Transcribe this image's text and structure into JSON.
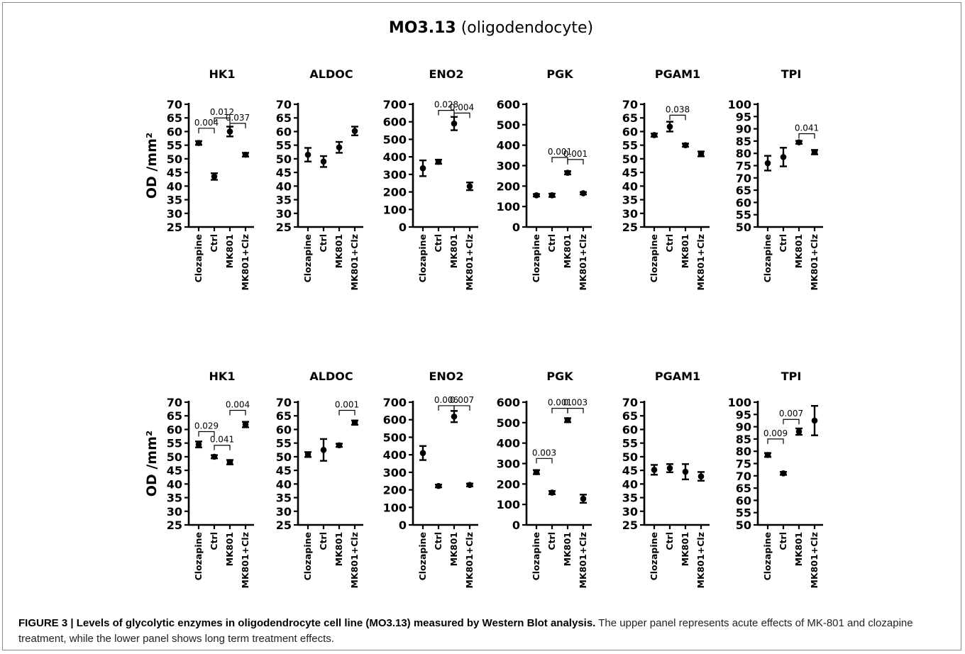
{
  "title_bold": "MO3.13",
  "title_rest": "(oligodendocyte)",
  "caption": {
    "label": "FIGURE 3 | Levels of glycolytic enzymes in oligodendrocyte cell line (MO3.13) measured by Western Blot analysis.",
    "text": "The upper panel represents acute effects of MK-801 and clozapine treatment, while the lower panel shows long term treatment effects."
  },
  "ylabel": "OD /mm²",
  "chart_data": [
    {
      "type": "scatter",
      "row": 0,
      "title": "HK1",
      "categories": [
        "Clozapine",
        "Ctrl",
        "MK801",
        "MK801+Clz"
      ],
      "values": [
        55.8,
        43.5,
        60,
        51.5
      ],
      "errors": [
        0.7,
        1.2,
        1.8,
        0.7
      ],
      "ylim": [
        25,
        70
      ],
      "ticks": [
        25,
        30,
        35,
        40,
        45,
        50,
        55,
        60,
        65,
        70
      ],
      "comparisons": [
        {
          "from": 0,
          "to": 1,
          "label": "0.004",
          "y": 61.2
        },
        {
          "from": 1,
          "to": 2,
          "label": "0.012",
          "y": 65
        },
        {
          "from": 2,
          "to": 3,
          "label": "0.037",
          "y": 63
        }
      ]
    },
    {
      "type": "scatter",
      "row": 0,
      "title": "ALDOC",
      "categories": [
        "Clozapine",
        "Ctrl",
        "MK801",
        "MK801+Clz"
      ],
      "values": [
        51.5,
        49,
        54.2,
        60.2
      ],
      "errors": [
        2.5,
        2,
        2,
        1.6
      ],
      "ylim": [
        25,
        70
      ],
      "ticks": [
        25,
        30,
        35,
        40,
        45,
        50,
        55,
        60,
        65,
        70
      ],
      "comparisons": []
    },
    {
      "type": "scatter",
      "row": 0,
      "title": "ENO2",
      "categories": [
        "Clozapine",
        "Ctrl",
        "MK801",
        "MK801+Clz"
      ],
      "values": [
        335,
        372,
        590,
        232
      ],
      "errors": [
        45,
        12,
        38,
        22
      ],
      "ylim": [
        0,
        700
      ],
      "ticks": [
        0,
        100,
        200,
        300,
        400,
        500,
        600,
        700
      ],
      "comparisons": [
        {
          "from": 1,
          "to": 2,
          "label": "0.028",
          "y": 665
        },
        {
          "from": 2,
          "to": 3,
          "label": "0.004",
          "y": 650
        }
      ]
    },
    {
      "type": "scatter",
      "row": 0,
      "title": "PGK",
      "categories": [
        "Clozapine",
        "Ctrl",
        "MK801",
        "MK801+Clz"
      ],
      "values": [
        155,
        155,
        265,
        165
      ],
      "errors": [
        6,
        8,
        8,
        6
      ],
      "ylim": [
        0,
        600
      ],
      "ticks": [
        0,
        100,
        200,
        300,
        400,
        500,
        600
      ],
      "comparisons": [
        {
          "from": 1,
          "to": 2,
          "label": "0.001",
          "y": 340
        },
        {
          "from": 2,
          "to": 3,
          "label": "0.001",
          "y": 330
        }
      ]
    },
    {
      "type": "scatter",
      "row": 0,
      "title": "PGAM1",
      "categories": [
        "Clozapine",
        "Ctrl",
        "MK801",
        "MK801+Clz"
      ],
      "values": [
        58.7,
        61.8,
        55,
        51.8
      ],
      "errors": [
        0.6,
        1.8,
        0.6,
        0.9
      ],
      "ylim": [
        25,
        70
      ],
      "ticks": [
        25,
        30,
        35,
        40,
        45,
        50,
        55,
        60,
        65,
        70
      ],
      "comparisons": [
        {
          "from": 1,
          "to": 2,
          "label": "0.038",
          "y": 66
        }
      ]
    },
    {
      "type": "scatter",
      "row": 0,
      "title": "TPI",
      "categories": [
        "Clozapine",
        "Ctrl",
        "MK801",
        "MK801+Clz"
      ],
      "values": [
        76,
        78.5,
        84.5,
        80.5
      ],
      "errors": [
        3,
        3.8,
        0.6,
        0.9
      ],
      "ylim": [
        50,
        100
      ],
      "ticks": [
        50,
        55,
        60,
        65,
        70,
        75,
        80,
        85,
        90,
        95,
        100
      ],
      "comparisons": [
        {
          "from": 2,
          "to": 3,
          "label": "0.041",
          "y": 88
        }
      ]
    },
    {
      "type": "scatter",
      "row": 1,
      "title": "HK1",
      "categories": [
        "Clozapine",
        "Ctrl",
        "MK801",
        "MK801+Clz"
      ],
      "values": [
        54.5,
        50,
        48,
        61.8
      ],
      "errors": [
        1.1,
        0.6,
        0.8,
        1
      ],
      "ylim": [
        25,
        70
      ],
      "ticks": [
        25,
        30,
        35,
        40,
        45,
        50,
        55,
        60,
        65,
        70
      ],
      "comparisons": [
        {
          "from": 0,
          "to": 1,
          "label": "0.029",
          "y": 59.2
        },
        {
          "from": 1,
          "to": 2,
          "label": "0.041",
          "y": 54.2
        },
        {
          "from": 2,
          "to": 3,
          "label": "0.004",
          "y": 67
        }
      ]
    },
    {
      "type": "scatter",
      "row": 1,
      "title": "ALDOC",
      "categories": [
        "Clozapine",
        "Ctrl",
        "MK801",
        "MK801+Clz"
      ],
      "values": [
        50.8,
        52.5,
        54.2,
        62.5
      ],
      "errors": [
        0.9,
        4,
        0.6,
        0.8
      ],
      "ylim": [
        25,
        70
      ],
      "ticks": [
        25,
        30,
        35,
        40,
        45,
        50,
        55,
        60,
        65,
        70
      ],
      "comparisons": [
        {
          "from": 2,
          "to": 3,
          "label": "0.001",
          "y": 67
        }
      ]
    },
    {
      "type": "scatter",
      "row": 1,
      "title": "ENO2",
      "categories": [
        "Clozapine",
        "Ctrl",
        "MK801",
        "MK801+Clz"
      ],
      "values": [
        410,
        222,
        618,
        228
      ],
      "errors": [
        40,
        8,
        32,
        8
      ],
      "ylim": [
        0,
        700
      ],
      "ticks": [
        0,
        100,
        200,
        300,
        400,
        500,
        600,
        700
      ],
      "comparisons": [
        {
          "from": 1,
          "to": 2,
          "label": "0.006",
          "y": 680
        },
        {
          "from": 2,
          "to": 3,
          "label": "0.007",
          "y": 680
        }
      ]
    },
    {
      "type": "scatter",
      "row": 1,
      "title": "PGK",
      "categories": [
        "Clozapine",
        "Ctrl",
        "MK801",
        "MK801+Clz"
      ],
      "values": [
        258,
        158,
        512,
        128
      ],
      "errors": [
        10,
        8,
        10,
        20
      ],
      "ylim": [
        0,
        600
      ],
      "ticks": [
        0,
        100,
        200,
        300,
        400,
        500,
        600
      ],
      "comparisons": [
        {
          "from": 0,
          "to": 1,
          "label": "0.003",
          "y": 325
        },
        {
          "from": 1,
          "to": 2,
          "label": "0.001",
          "y": 570
        },
        {
          "from": 2,
          "to": 3,
          "label": "0.003",
          "y": 570
        }
      ]
    },
    {
      "type": "scatter",
      "row": 1,
      "title": "PGAM1",
      "categories": [
        "Clozapine",
        "Ctrl",
        "MK801",
        "MK801+Clz"
      ],
      "values": [
        45.2,
        45.8,
        44.5,
        42.8
      ],
      "errors": [
        1.8,
        1.5,
        2.8,
        1.6
      ],
      "ylim": [
        25,
        70
      ],
      "ticks": [
        25,
        30,
        35,
        40,
        45,
        50,
        55,
        60,
        65,
        70
      ],
      "comparisons": []
    },
    {
      "type": "scatter",
      "row": 1,
      "title": "TPI",
      "categories": [
        "Clozapine",
        "Ctrl",
        "MK801",
        "MK801+Clz"
      ],
      "values": [
        78.5,
        71,
        88,
        92.5
      ],
      "errors": [
        0.8,
        0.6,
        1.3,
        6
      ],
      "ylim": [
        50,
        100
      ],
      "ticks": [
        50,
        55,
        60,
        65,
        70,
        75,
        80,
        85,
        90,
        95,
        100
      ],
      "comparisons": [
        {
          "from": 0,
          "to": 1,
          "label": "0.009",
          "y": 85
        },
        {
          "from": 1,
          "to": 2,
          "label": "0.007",
          "y": 93
        }
      ]
    }
  ]
}
